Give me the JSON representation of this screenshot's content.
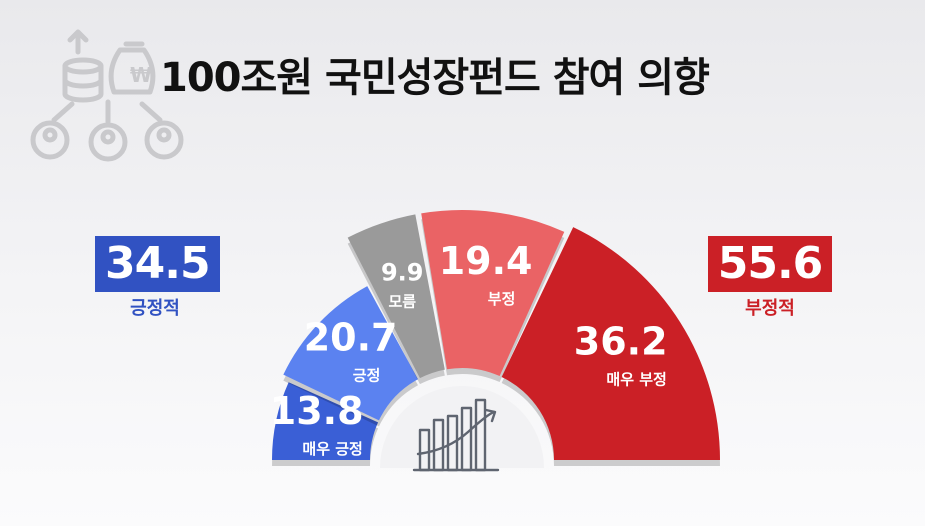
{
  "title": "100조원 국민성장펀드 참여 의향",
  "summary": {
    "positive": {
      "value": "34.5",
      "label": "긍정적",
      "color": "#3152c2"
    },
    "negative": {
      "value": "55.6",
      "label": "부정적",
      "color": "#cb2026"
    }
  },
  "chart_data": {
    "type": "pie",
    "title": "100조원 국민성장펀드 참여 의향",
    "slices": [
      {
        "label": "매우 긍정",
        "value": 13.8,
        "color": "#3a5fd6"
      },
      {
        "label": "긍정",
        "value": 20.7,
        "color": "#5b82f0"
      },
      {
        "label": "모름",
        "value": 9.9,
        "color": "#9a9a9a"
      },
      {
        "label": "부정",
        "value": 19.4,
        "color": "#ea6365"
      },
      {
        "label": "매우 부정",
        "value": 36.2,
        "color": "#cb2026"
      }
    ]
  },
  "icons": {
    "center": "chart-growth-icon",
    "decoration": "investment-people-icon"
  }
}
